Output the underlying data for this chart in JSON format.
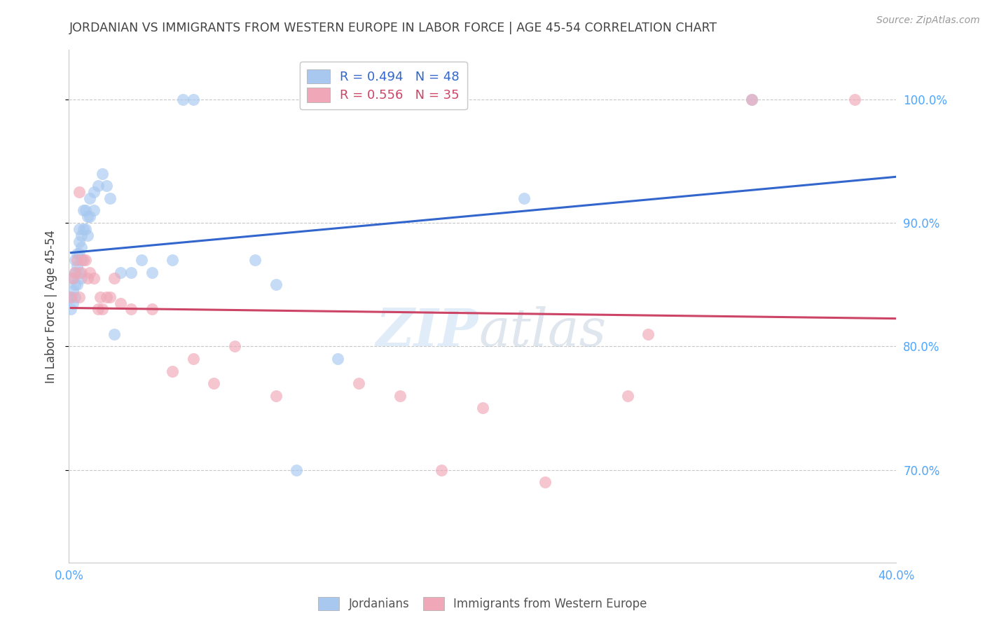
{
  "title": "JORDANIAN VS IMMIGRANTS FROM WESTERN EUROPE IN LABOR FORCE | AGE 45-54 CORRELATION CHART",
  "source": "Source: ZipAtlas.com",
  "ylabel": "In Labor Force | Age 45-54",
  "background_color": "#ffffff",
  "title_color": "#444444",
  "title_fontsize": 12.5,
  "source_fontsize": 10,
  "axis_label_color": "#444444",
  "tick_color": "#4da6ff",
  "grid_color": "#c8c8c8",
  "blue_color": "#a8c8f0",
  "pink_color": "#f0a8b8",
  "blue_line_color": "#3366cc",
  "pink_line_color": "#cc4466",
  "legend_blue_label": "R = 0.494   N = 48",
  "legend_pink_label": "R = 0.556   N = 35",
  "legend_jordanians": "Jordanians",
  "legend_immigrants": "Immigrants from Western Europe",
  "xlim": [
    0.0,
    0.4
  ],
  "ylim": [
    0.625,
    1.04
  ],
  "yticks": [
    0.7,
    0.8,
    0.9,
    1.0
  ],
  "ytick_labels": [
    "70.0%",
    "80.0%",
    "90.0%",
    "100.0%"
  ],
  "xticks": [
    0.0,
    0.1,
    0.2,
    0.3,
    0.4
  ],
  "xtick_labels_bottom": [
    "0.0%",
    "",
    "",
    "",
    "40.0%"
  ],
  "blue_x": [
    0.001,
    0.001,
    0.002,
    0.002,
    0.002,
    0.003,
    0.003,
    0.003,
    0.003,
    0.004,
    0.004,
    0.004,
    0.005,
    0.005,
    0.005,
    0.005,
    0.006,
    0.006,
    0.006,
    0.006,
    0.007,
    0.007,
    0.008,
    0.008,
    0.009,
    0.009,
    0.01,
    0.01,
    0.012,
    0.012,
    0.014,
    0.016,
    0.018,
    0.02,
    0.022,
    0.025,
    0.03,
    0.035,
    0.04,
    0.05,
    0.055,
    0.06,
    0.09,
    0.1,
    0.11,
    0.13,
    0.22,
    0.33
  ],
  "blue_y": [
    0.84,
    0.83,
    0.855,
    0.845,
    0.835,
    0.87,
    0.86,
    0.85,
    0.84,
    0.875,
    0.865,
    0.85,
    0.895,
    0.885,
    0.875,
    0.86,
    0.89,
    0.88,
    0.87,
    0.855,
    0.91,
    0.895,
    0.91,
    0.895,
    0.905,
    0.89,
    0.92,
    0.905,
    0.925,
    0.91,
    0.93,
    0.94,
    0.93,
    0.92,
    0.81,
    0.86,
    0.86,
    0.87,
    0.86,
    0.87,
    1.0,
    1.0,
    0.87,
    0.85,
    0.7,
    0.79,
    0.92,
    1.0
  ],
  "pink_x": [
    0.001,
    0.002,
    0.003,
    0.004,
    0.005,
    0.005,
    0.006,
    0.007,
    0.008,
    0.009,
    0.01,
    0.012,
    0.014,
    0.015,
    0.016,
    0.018,
    0.02,
    0.022,
    0.025,
    0.03,
    0.04,
    0.05,
    0.06,
    0.07,
    0.08,
    0.1,
    0.14,
    0.16,
    0.18,
    0.2,
    0.23,
    0.27,
    0.28,
    0.33,
    0.38
  ],
  "pink_y": [
    0.84,
    0.855,
    0.86,
    0.87,
    0.84,
    0.925,
    0.86,
    0.87,
    0.87,
    0.855,
    0.86,
    0.855,
    0.83,
    0.84,
    0.83,
    0.84,
    0.84,
    0.855,
    0.835,
    0.83,
    0.83,
    0.78,
    0.79,
    0.77,
    0.8,
    0.76,
    0.77,
    0.76,
    0.7,
    0.75,
    0.69,
    0.76,
    0.81,
    1.0,
    1.0
  ]
}
